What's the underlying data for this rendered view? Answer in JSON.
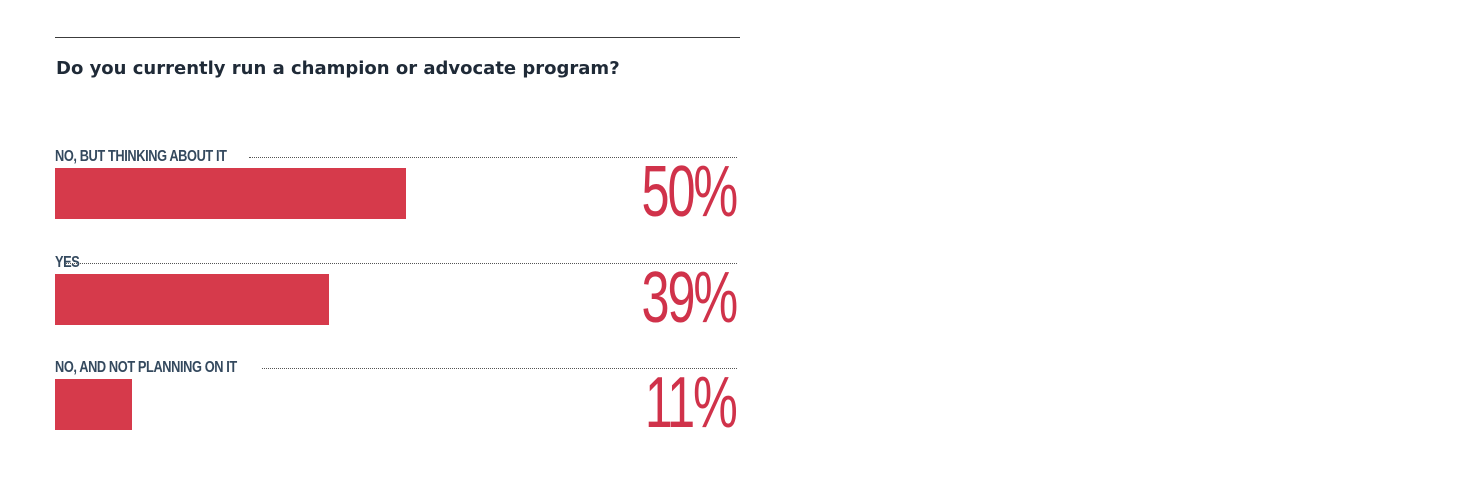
{
  "chart_data": {
    "type": "bar",
    "orientation": "horizontal",
    "title": "Do you currently run a champion or advocate program?",
    "categories": [
      "NO, BUT THINKING ABOUT IT",
      "YES",
      "NO, AND NOT PLANNING ON IT"
    ],
    "values": [
      50,
      39,
      11
    ],
    "value_labels": [
      "50%",
      "39%",
      "11%"
    ],
    "unit": "%",
    "xlim": [
      0,
      100
    ],
    "grid": false,
    "legend": "none"
  },
  "colors": {
    "bar": "#d63a4b",
    "value_text": "#d0324a",
    "label_text": "#34495e",
    "title_text": "#1f2a37"
  }
}
